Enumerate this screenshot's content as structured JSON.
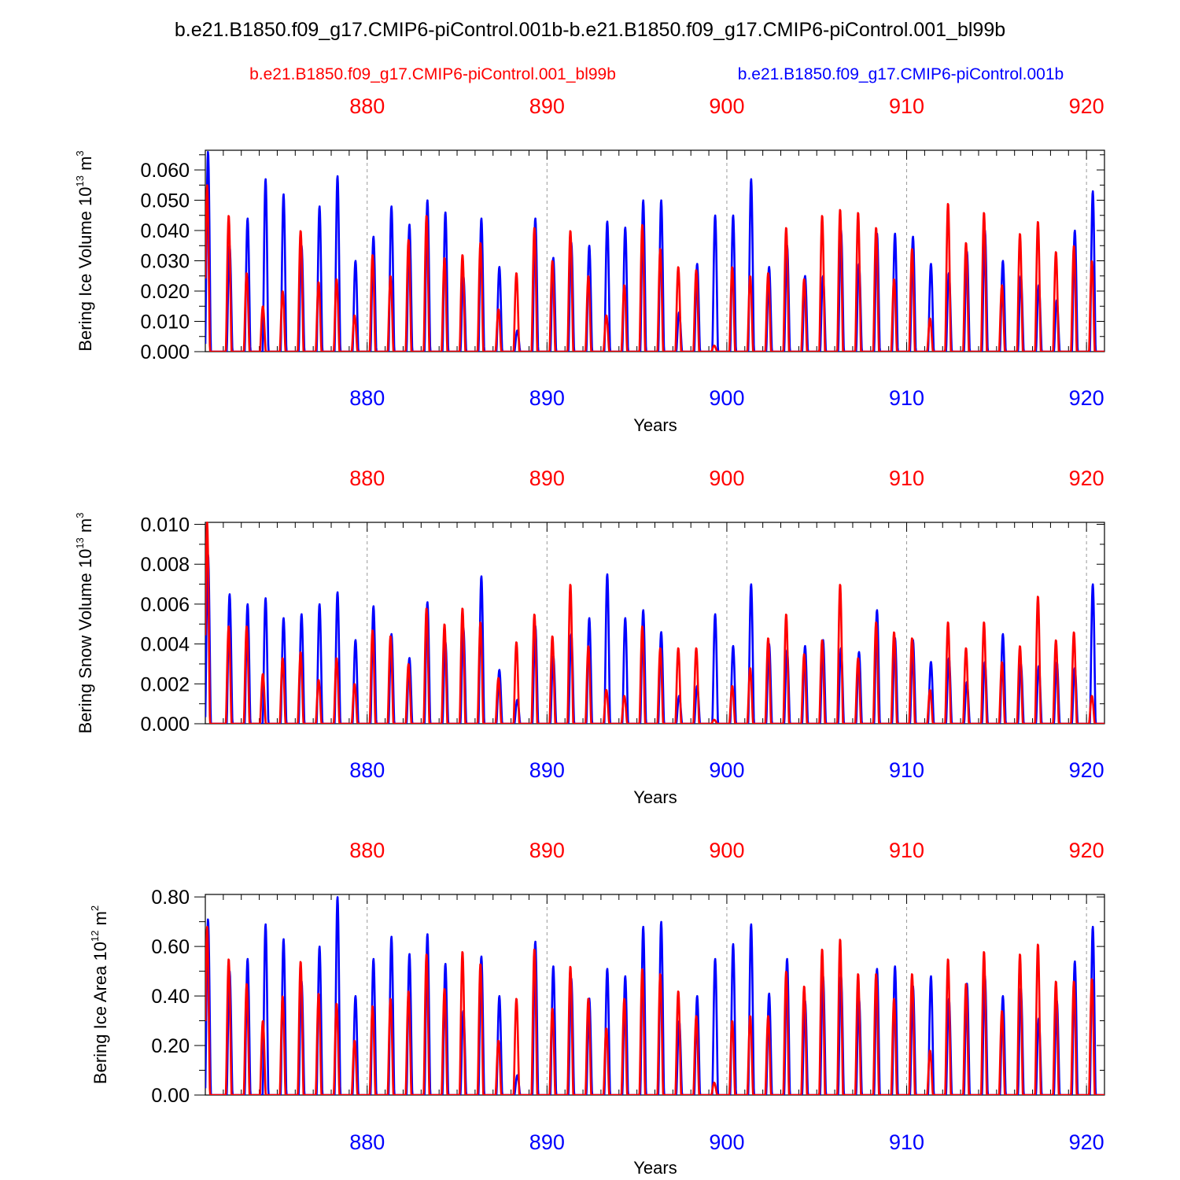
{
  "figure": {
    "title": "b.e21.B1850.f09_g17.CMIP6-piControl.001b-b.e21.B1850.f09_g17.CMIP6-piControl.001_bl99b",
    "legend": [
      {
        "label": "b.e21.B1850.f09_g17.CMIP6-piControl.001_bl99b",
        "color": "#ff0000"
      },
      {
        "label": "b.e21.B1850.f09_g17.CMIP6-piControl.001b",
        "color": "#0000ff"
      }
    ]
  },
  "colors": {
    "red_series": "#ff0000",
    "blue_series": "#0000ff",
    "grid": "#999999",
    "axis": "#000000"
  },
  "chart_data": [
    {
      "type": "line",
      "title": "",
      "ylabel_main": "Bering Ice Volume 10",
      "ylabel_exp": "13",
      "ylabel_unit": " m",
      "ylabel_unit_exp": "3",
      "xlabel": "Years",
      "xlim": [
        871.0,
        921.0
      ],
      "ylim": [
        0.0,
        0.0665
      ],
      "y_ticks": [
        0.0,
        0.01,
        0.02,
        0.03,
        0.04,
        0.05,
        0.06
      ],
      "y_tick_labels": [
        "0.000",
        "0.010",
        "0.020",
        "0.030",
        "0.040",
        "0.050",
        "0.060"
      ],
      "x_ticks": [
        880,
        890,
        900,
        910,
        920
      ],
      "x_tick_labels": [
        "880",
        "890",
        "900",
        "910",
        "920"
      ],
      "grid": "dashed vertical at major ticks",
      "series": [
        {
          "name": "b.e21.B1850.f09_g17.CMIP6-piControl.001_bl99b",
          "color": "#ff0000",
          "peak_years": [
            871.1,
            872.3,
            873.3,
            874.2,
            875.3,
            876.3,
            877.3,
            878.3,
            879.3,
            880.3,
            881.3,
            882.3,
            883.3,
            884.3,
            885.3,
            886.3,
            887.3,
            888.3,
            889.3,
            890.3,
            891.3,
            892.3,
            893.3,
            894.3,
            895.3,
            896.3,
            897.3,
            898.3,
            899.3,
            900.3,
            901.3,
            902.3,
            903.3,
            904.3,
            905.3,
            906.3,
            907.3,
            908.3,
            909.3,
            910.3,
            911.3,
            912.3,
            913.3,
            914.3,
            915.3,
            916.3,
            917.3,
            918.3,
            919.3,
            920.3
          ],
          "peak_values": [
            0.055,
            0.045,
            0.026,
            0.015,
            0.02,
            0.04,
            0.023,
            0.024,
            0.012,
            0.032,
            0.025,
            0.037,
            0.045,
            0.031,
            0.032,
            0.036,
            0.014,
            0.026,
            0.041,
            0.03,
            0.04,
            0.025,
            0.012,
            0.022,
            0.042,
            0.034,
            0.028,
            0.027,
            0.002,
            0.028,
            0.025,
            0.026,
            0.041,
            0.024,
            0.045,
            0.047,
            0.046,
            0.041,
            0.024,
            0.034,
            0.011,
            0.049,
            0.036,
            0.046,
            0.022,
            0.039,
            0.043,
            0.033,
            0.035,
            0.03
          ]
        },
        {
          "name": "b.e21.B1850.f09_g17.CMIP6-piControl.001b",
          "color": "#0000ff",
          "peak_years": [
            871.15,
            872.35,
            873.35,
            874.35,
            875.35,
            876.35,
            877.35,
            878.35,
            879.35,
            880.35,
            881.35,
            882.35,
            883.35,
            884.35,
            885.35,
            886.35,
            887.35,
            888.35,
            889.35,
            890.35,
            891.35,
            892.35,
            893.35,
            894.35,
            895.35,
            896.35,
            897.35,
            898.35,
            899.35,
            900.35,
            901.35,
            902.35,
            903.35,
            904.35,
            905.35,
            906.35,
            907.35,
            908.35,
            909.35,
            910.35,
            911.35,
            912.35,
            913.35,
            914.35,
            915.35,
            916.35,
            917.35,
            918.35,
            919.35,
            920.35
          ],
          "peak_values": [
            0.066,
            0.035,
            0.044,
            0.057,
            0.052,
            0.035,
            0.048,
            0.058,
            0.03,
            0.038,
            0.048,
            0.042,
            0.05,
            0.046,
            0.025,
            0.044,
            0.028,
            0.007,
            0.044,
            0.031,
            0.036,
            0.035,
            0.043,
            0.041,
            0.05,
            0.05,
            0.013,
            0.029,
            0.045,
            0.045,
            0.057,
            0.028,
            0.035,
            0.025,
            0.025,
            0.04,
            0.029,
            0.039,
            0.039,
            0.038,
            0.029,
            0.026,
            0.033,
            0.04,
            0.03,
            0.025,
            0.022,
            0.017,
            0.04,
            0.053
          ]
        }
      ]
    },
    {
      "type": "line",
      "title": "",
      "ylabel_main": "Bering Snow Volume 10",
      "ylabel_exp": "13",
      "ylabel_unit": " m",
      "ylabel_unit_exp": "3",
      "xlabel": "Years",
      "xlim": [
        871.0,
        921.0
      ],
      "ylim": [
        0.0,
        0.0101
      ],
      "y_ticks": [
        0.0,
        0.002,
        0.004,
        0.006,
        0.008,
        0.01
      ],
      "y_tick_labels": [
        "0.000",
        "0.002",
        "0.004",
        "0.006",
        "0.008",
        "0.010"
      ],
      "x_ticks": [
        880,
        890,
        900,
        910,
        920
      ],
      "x_tick_labels": [
        "880",
        "890",
        "900",
        "910",
        "920"
      ],
      "grid": "dashed vertical at major ticks",
      "series": [
        {
          "name": "b.e21.B1850.f09_g17.CMIP6-piControl.001_bl99b",
          "color": "#ff0000",
          "peak_years": [
            871.1,
            872.3,
            873.3,
            874.2,
            875.3,
            876.3,
            877.3,
            878.3,
            879.3,
            880.3,
            881.3,
            882.3,
            883.3,
            884.3,
            885.3,
            886.3,
            887.3,
            888.3,
            889.3,
            890.3,
            891.3,
            892.3,
            893.3,
            894.3,
            895.3,
            896.3,
            897.3,
            898.3,
            899.3,
            900.3,
            901.3,
            902.3,
            903.3,
            904.3,
            905.3,
            906.3,
            907.3,
            908.3,
            909.3,
            910.3,
            911.3,
            912.3,
            913.3,
            914.3,
            915.3,
            916.3,
            917.3,
            918.3,
            919.3,
            920.3
          ],
          "peak_values": [
            0.0101,
            0.0049,
            0.0049,
            0.0025,
            0.0033,
            0.0036,
            0.0022,
            0.0033,
            0.002,
            0.0047,
            0.0044,
            0.003,
            0.0058,
            0.005,
            0.0058,
            0.0051,
            0.0023,
            0.0041,
            0.0055,
            0.0044,
            0.007,
            0.0039,
            0.0017,
            0.0014,
            0.0049,
            0.0038,
            0.0038,
            0.0038,
            0.0002,
            0.0019,
            0.0028,
            0.0043,
            0.0055,
            0.0035,
            0.0042,
            0.007,
            0.0033,
            0.0051,
            0.0046,
            0.0043,
            0.0017,
            0.0051,
            0.0038,
            0.0051,
            0.0031,
            0.0039,
            0.0064,
            0.0042,
            0.0046,
            0.0014
          ]
        },
        {
          "name": "b.e21.B1850.f09_g17.CMIP6-piControl.001b",
          "color": "#0000ff",
          "peak_years": [
            871.15,
            872.35,
            873.35,
            874.35,
            875.35,
            876.35,
            877.35,
            878.35,
            879.35,
            880.35,
            881.35,
            882.35,
            883.35,
            884.35,
            885.35,
            886.35,
            887.35,
            888.35,
            889.35,
            890.35,
            891.35,
            892.35,
            893.35,
            894.35,
            895.35,
            896.35,
            897.35,
            898.35,
            899.35,
            900.35,
            901.35,
            902.35,
            903.35,
            904.35,
            905.35,
            906.35,
            907.35,
            908.35,
            909.35,
            910.35,
            911.35,
            912.35,
            913.35,
            914.35,
            915.35,
            916.35,
            917.35,
            918.35,
            919.35,
            920.35
          ],
          "peak_values": [
            0.0085,
            0.0065,
            0.006,
            0.0063,
            0.0053,
            0.0055,
            0.006,
            0.0066,
            0.0042,
            0.0059,
            0.0045,
            0.0033,
            0.0061,
            0.0041,
            0.0048,
            0.0074,
            0.0027,
            0.0012,
            0.0049,
            0.0034,
            0.0045,
            0.0053,
            0.0075,
            0.0053,
            0.0057,
            0.0046,
            0.0014,
            0.0019,
            0.0055,
            0.0039,
            0.007,
            0.004,
            0.0037,
            0.0039,
            0.0042,
            0.0038,
            0.0036,
            0.0057,
            0.0043,
            0.0042,
            0.0031,
            0.0033,
            0.0021,
            0.0031,
            0.0045,
            0.003,
            0.0029,
            0.0031,
            0.0028,
            0.007
          ]
        }
      ]
    },
    {
      "type": "line",
      "title": "",
      "ylabel_main": "Bering Ice Area 10",
      "ylabel_exp": "12",
      "ylabel_unit": " m",
      "ylabel_unit_exp": "2",
      "xlabel": "Years",
      "xlim": [
        871.0,
        921.0
      ],
      "ylim": [
        0.0,
        0.81
      ],
      "y_ticks": [
        0.0,
        0.2,
        0.4,
        0.6,
        0.8
      ],
      "y_tick_labels": [
        "0.00",
        "0.20",
        "0.40",
        "0.60",
        "0.80"
      ],
      "x_ticks": [
        880,
        890,
        900,
        910,
        920
      ],
      "x_tick_labels": [
        "880",
        "890",
        "900",
        "910",
        "920"
      ],
      "grid": "dashed vertical at major ticks",
      "series": [
        {
          "name": "b.e21.B1850.f09_g17.CMIP6-piControl.001_bl99b",
          "color": "#ff0000",
          "peak_years": [
            871.1,
            872.3,
            873.3,
            874.2,
            875.3,
            876.3,
            877.3,
            878.3,
            879.3,
            880.3,
            881.3,
            882.3,
            883.3,
            884.3,
            885.3,
            886.3,
            887.3,
            888.3,
            889.3,
            890.3,
            891.3,
            892.3,
            893.3,
            894.3,
            895.3,
            896.3,
            897.3,
            898.3,
            899.3,
            900.3,
            901.3,
            902.3,
            903.3,
            904.3,
            905.3,
            906.3,
            907.3,
            908.3,
            909.3,
            910.3,
            911.3,
            912.3,
            913.3,
            914.3,
            915.3,
            916.3,
            917.3,
            918.3,
            919.3,
            920.3
          ],
          "peak_values": [
            0.68,
            0.55,
            0.45,
            0.3,
            0.4,
            0.54,
            0.41,
            0.37,
            0.22,
            0.36,
            0.39,
            0.42,
            0.57,
            0.43,
            0.58,
            0.53,
            0.22,
            0.39,
            0.59,
            0.35,
            0.52,
            0.39,
            0.27,
            0.39,
            0.51,
            0.49,
            0.42,
            0.32,
            0.05,
            0.3,
            0.32,
            0.32,
            0.5,
            0.44,
            0.59,
            0.63,
            0.49,
            0.49,
            0.39,
            0.49,
            0.18,
            0.55,
            0.45,
            0.58,
            0.34,
            0.57,
            0.61,
            0.46,
            0.46,
            0.47
          ]
        },
        {
          "name": "b.e21.B1850.f09_g17.CMIP6-piControl.001b",
          "color": "#0000ff",
          "peak_years": [
            871.15,
            872.35,
            873.35,
            874.35,
            875.35,
            876.35,
            877.35,
            878.35,
            879.35,
            880.35,
            881.35,
            882.35,
            883.35,
            884.35,
            885.35,
            886.35,
            887.35,
            888.35,
            889.35,
            890.35,
            891.35,
            892.35,
            893.35,
            894.35,
            895.35,
            896.35,
            897.35,
            898.35,
            899.35,
            900.35,
            901.35,
            902.35,
            903.35,
            904.35,
            905.35,
            906.35,
            907.35,
            908.35,
            909.35,
            910.35,
            911.35,
            912.35,
            913.35,
            914.35,
            915.35,
            916.35,
            917.35,
            918.35,
            919.35,
            920.35
          ],
          "peak_values": [
            0.71,
            0.5,
            0.55,
            0.69,
            0.63,
            0.46,
            0.6,
            0.8,
            0.4,
            0.55,
            0.64,
            0.57,
            0.65,
            0.53,
            0.34,
            0.56,
            0.4,
            0.08,
            0.62,
            0.52,
            0.47,
            0.39,
            0.51,
            0.48,
            0.68,
            0.7,
            0.3,
            0.4,
            0.55,
            0.61,
            0.69,
            0.41,
            0.55,
            0.38,
            0.48,
            0.48,
            0.39,
            0.51,
            0.52,
            0.44,
            0.48,
            0.39,
            0.45,
            0.48,
            0.4,
            0.43,
            0.31,
            0.38,
            0.54,
            0.68
          ]
        }
      ]
    }
  ]
}
